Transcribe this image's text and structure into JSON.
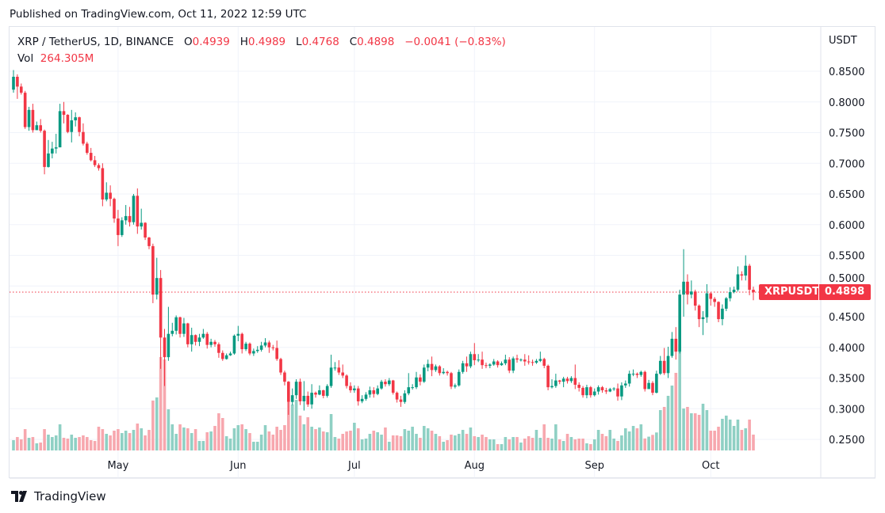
{
  "header": {
    "published": "Published on TradingView.com, Oct 11, 2022 12:59 UTC"
  },
  "legend": {
    "symbol": "XRP / TetherUS, 1D, BINANCE",
    "o_label": "O",
    "o": "0.4939",
    "h_label": "H",
    "h": "0.4989",
    "l_label": "L",
    "l": "0.4768",
    "c_label": "C",
    "c": "0.4898",
    "change": "−0.0041 (−0.83%)",
    "vol_label": "Vol",
    "vol": "264.305M"
  },
  "last_price_tag": {
    "symbol": "XRPUSDT",
    "price": "0.4898"
  },
  "footer": {
    "brand": "TradingView"
  },
  "colors": {
    "up": "#089981",
    "down": "#f23645",
    "up_volume": "#8fd0c4",
    "down_volume": "#f7a7ae",
    "grid": "#f0f3fa"
  },
  "chart_data": {
    "type": "candlestick",
    "title": "",
    "y_axis_unit": "USDT",
    "ylim": [
      0.225,
      0.875
    ],
    "y_ticks": [
      "0.8500",
      "0.8000",
      "0.7500",
      "0.7000",
      "0.6500",
      "0.6000",
      "0.5500",
      "0.5000",
      "0.4500",
      "0.4000",
      "0.3500",
      "0.3000",
      "0.2500"
    ],
    "x_ticks": [
      {
        "label": "May",
        "index": 27
      },
      {
        "label": "Jun",
        "index": 58
      },
      {
        "label": "Jul",
        "index": 88
      },
      {
        "label": "Aug",
        "index": 119
      },
      {
        "label": "Sep",
        "index": 150
      },
      {
        "label": "Oct",
        "index": 180
      }
    ],
    "grid": true,
    "last_price": 0.4898,
    "first_open": 0.82,
    "close": [
      0.841,
      0.825,
      0.815,
      0.759,
      0.787,
      0.754,
      0.762,
      0.753,
      0.694,
      0.716,
      0.724,
      0.726,
      0.785,
      0.779,
      0.751,
      0.77,
      0.775,
      0.751,
      0.732,
      0.717,
      0.705,
      0.697,
      0.692,
      0.641,
      0.652,
      0.642,
      0.61,
      0.583,
      0.607,
      0.614,
      0.604,
      0.647,
      0.597,
      0.603,
      0.579,
      0.565,
      0.486,
      0.513,
      0.416,
      0.384,
      0.422,
      0.427,
      0.449,
      0.422,
      0.439,
      0.405,
      0.42,
      0.409,
      0.416,
      0.422,
      0.404,
      0.409,
      0.405,
      0.391,
      0.381,
      0.387,
      0.39,
      0.419,
      0.422,
      0.397,
      0.406,
      0.39,
      0.394,
      0.396,
      0.403,
      0.408,
      0.4,
      0.399,
      0.381,
      0.359,
      0.344,
      0.311,
      0.322,
      0.344,
      0.312,
      0.321,
      0.307,
      0.326,
      0.323,
      0.33,
      0.321,
      0.337,
      0.367,
      0.367,
      0.359,
      0.354,
      0.337,
      0.33,
      0.333,
      0.312,
      0.316,
      0.323,
      0.33,
      0.324,
      0.333,
      0.344,
      0.34,
      0.346,
      0.326,
      0.315,
      0.311,
      0.325,
      0.335,
      0.335,
      0.351,
      0.344,
      0.367,
      0.373,
      0.363,
      0.369,
      0.358,
      0.36,
      0.358,
      0.336,
      0.338,
      0.36,
      0.374,
      0.369,
      0.389,
      0.379,
      0.38,
      0.371,
      0.37,
      0.372,
      0.377,
      0.371,
      0.374,
      0.38,
      0.362,
      0.382,
      0.38,
      0.38,
      0.377,
      0.376,
      0.375,
      0.378,
      0.381,
      0.37,
      0.335,
      0.337,
      0.346,
      0.344,
      0.349,
      0.345,
      0.35,
      0.339,
      0.334,
      0.322,
      0.335,
      0.322,
      0.328,
      0.335,
      0.33,
      0.328,
      0.332,
      0.333,
      0.32,
      0.338,
      0.341,
      0.357,
      0.357,
      0.355,
      0.36,
      0.332,
      0.342,
      0.326,
      0.357,
      0.378,
      0.358,
      0.386,
      0.414,
      0.393,
      0.486,
      0.507,
      0.486,
      0.491,
      0.468,
      0.446,
      0.449,
      0.488,
      0.479,
      0.474,
      0.446,
      0.463,
      0.48,
      0.49,
      0.494,
      0.519,
      0.517,
      0.533,
      0.4939,
      0.4898
    ],
    "high": [
      0.852,
      0.845,
      0.83,
      0.818,
      0.792,
      0.797,
      0.768,
      0.772,
      0.755,
      0.738,
      0.735,
      0.748,
      0.797,
      0.8,
      0.78,
      0.787,
      0.783,
      0.776,
      0.765,
      0.735,
      0.725,
      0.712,
      0.7,
      0.7,
      0.669,
      0.664,
      0.644,
      0.624,
      0.612,
      0.632,
      0.629,
      0.65,
      0.659,
      0.626,
      0.604,
      0.58,
      0.569,
      0.546,
      0.526,
      0.43,
      0.466,
      0.44,
      0.452,
      0.45,
      0.448,
      0.44,
      0.432,
      0.421,
      0.422,
      0.43,
      0.425,
      0.414,
      0.412,
      0.408,
      0.395,
      0.39,
      0.393,
      0.421,
      0.435,
      0.424,
      0.409,
      0.408,
      0.398,
      0.402,
      0.409,
      0.415,
      0.411,
      0.404,
      0.411,
      0.383,
      0.362,
      0.345,
      0.333,
      0.348,
      0.349,
      0.345,
      0.328,
      0.34,
      0.328,
      0.338,
      0.331,
      0.34,
      0.388,
      0.376,
      0.379,
      0.372,
      0.356,
      0.343,
      0.338,
      0.337,
      0.322,
      0.327,
      0.336,
      0.335,
      0.338,
      0.347,
      0.348,
      0.35,
      0.347,
      0.328,
      0.321,
      0.33,
      0.358,
      0.34,
      0.36,
      0.356,
      0.372,
      0.38,
      0.385,
      0.372,
      0.371,
      0.366,
      0.362,
      0.36,
      0.341,
      0.364,
      0.378,
      0.385,
      0.393,
      0.407,
      0.389,
      0.393,
      0.375,
      0.374,
      0.381,
      0.379,
      0.377,
      0.388,
      0.384,
      0.385,
      0.388,
      0.382,
      0.389,
      0.387,
      0.38,
      0.381,
      0.393,
      0.383,
      0.372,
      0.348,
      0.357,
      0.347,
      0.352,
      0.352,
      0.353,
      0.372,
      0.343,
      0.337,
      0.339,
      0.337,
      0.333,
      0.338,
      0.337,
      0.334,
      0.334,
      0.335,
      0.341,
      0.343,
      0.346,
      0.362,
      0.364,
      0.359,
      0.362,
      0.362,
      0.347,
      0.345,
      0.362,
      0.386,
      0.399,
      0.401,
      0.425,
      0.433,
      0.494,
      0.56,
      0.519,
      0.509,
      0.494,
      0.47,
      0.459,
      0.503,
      0.49,
      0.482,
      0.475,
      0.47,
      0.482,
      0.498,
      0.499,
      0.532,
      0.524,
      0.55,
      0.536,
      0.4989
    ],
    "low": [
      0.815,
      0.805,
      0.812,
      0.756,
      0.753,
      0.75,
      0.754,
      0.75,
      0.682,
      0.693,
      0.708,
      0.716,
      0.726,
      0.765,
      0.749,
      0.734,
      0.76,
      0.744,
      0.729,
      0.714,
      0.703,
      0.694,
      0.688,
      0.63,
      0.638,
      0.63,
      0.603,
      0.565,
      0.58,
      0.6,
      0.597,
      0.6,
      0.585,
      0.592,
      0.575,
      0.56,
      0.472,
      0.478,
      0.365,
      0.337,
      0.378,
      0.418,
      0.421,
      0.416,
      0.417,
      0.4,
      0.393,
      0.403,
      0.402,
      0.414,
      0.398,
      0.4,
      0.401,
      0.383,
      0.378,
      0.38,
      0.386,
      0.388,
      0.41,
      0.39,
      0.394,
      0.387,
      0.386,
      0.391,
      0.393,
      0.4,
      0.391,
      0.395,
      0.378,
      0.355,
      0.338,
      0.29,
      0.306,
      0.316,
      0.306,
      0.297,
      0.303,
      0.3,
      0.318,
      0.322,
      0.317,
      0.318,
      0.334,
      0.362,
      0.355,
      0.35,
      0.333,
      0.326,
      0.326,
      0.305,
      0.309,
      0.313,
      0.318,
      0.318,
      0.322,
      0.331,
      0.336,
      0.337,
      0.323,
      0.31,
      0.303,
      0.308,
      0.322,
      0.331,
      0.332,
      0.338,
      0.342,
      0.361,
      0.353,
      0.36,
      0.354,
      0.356,
      0.354,
      0.332,
      0.333,
      0.336,
      0.357,
      0.36,
      0.366,
      0.371,
      0.376,
      0.365,
      0.366,
      0.366,
      0.37,
      0.367,
      0.37,
      0.371,
      0.358,
      0.358,
      0.375,
      0.377,
      0.37,
      0.372,
      0.37,
      0.373,
      0.376,
      0.366,
      0.33,
      0.333,
      0.334,
      0.34,
      0.335,
      0.341,
      0.342,
      0.332,
      0.328,
      0.318,
      0.317,
      0.318,
      0.32,
      0.323,
      0.326,
      0.324,
      0.327,
      0.329,
      0.313,
      0.314,
      0.334,
      0.336,
      0.353,
      0.35,
      0.352,
      0.328,
      0.334,
      0.322,
      0.325,
      0.355,
      0.355,
      0.35,
      0.383,
      0.38,
      0.39,
      0.45,
      0.47,
      0.48,
      0.46,
      0.433,
      0.42,
      0.44,
      0.468,
      0.466,
      0.441,
      0.436,
      0.459,
      0.475,
      0.488,
      0.491,
      0.509,
      0.509,
      0.485,
      0.4768
    ],
    "volume_millions": [
      172,
      224,
      185,
      356,
      211,
      224,
      119,
      132,
      356,
      264,
      224,
      251,
      436,
      211,
      198,
      264,
      211,
      224,
      251,
      224,
      172,
      158,
      396,
      356,
      277,
      251,
      330,
      356,
      290,
      330,
      290,
      343,
      449,
      370,
      251,
      343,
      832,
      884,
      1558,
      1518,
      686,
      436,
      277,
      436,
      383,
      370,
      290,
      356,
      158,
      158,
      304,
      317,
      409,
      620,
      541,
      238,
      198,
      370,
      422,
      436,
      356,
      290,
      145,
      145,
      264,
      422,
      317,
      264,
      396,
      343,
      422,
      805,
      766,
      845,
      581,
      436,
      554,
      396,
      356,
      383,
      317,
      304,
      607,
      224,
      198,
      277,
      317,
      330,
      462,
      370,
      185,
      198,
      277,
      330,
      304,
      264,
      383,
      145,
      251,
      251,
      238,
      356,
      330,
      396,
      277,
      211,
      409,
      370,
      330,
      277,
      238,
      145,
      172,
      264,
      251,
      277,
      343,
      277,
      383,
      238,
      224,
      264,
      224,
      185,
      185,
      106,
      106,
      224,
      185,
      224,
      224,
      132,
      198,
      238,
      211,
      343,
      211,
      436,
      211,
      198,
      436,
      185,
      158,
      277,
      224,
      185,
      198,
      198,
      119,
      106,
      185,
      343,
      277,
      238,
      343,
      198,
      158,
      251,
      370,
      317,
      409,
      370,
      436,
      200,
      230,
      260,
      300,
      673,
      726,
      911,
      1082,
      1294,
      1769,
      700,
      726,
      620,
      620,
      594,
      779,
      673,
      330,
      330,
      396,
      528,
      581,
      515,
      409,
      515,
      343,
      370,
      515,
      264.305
    ]
  }
}
